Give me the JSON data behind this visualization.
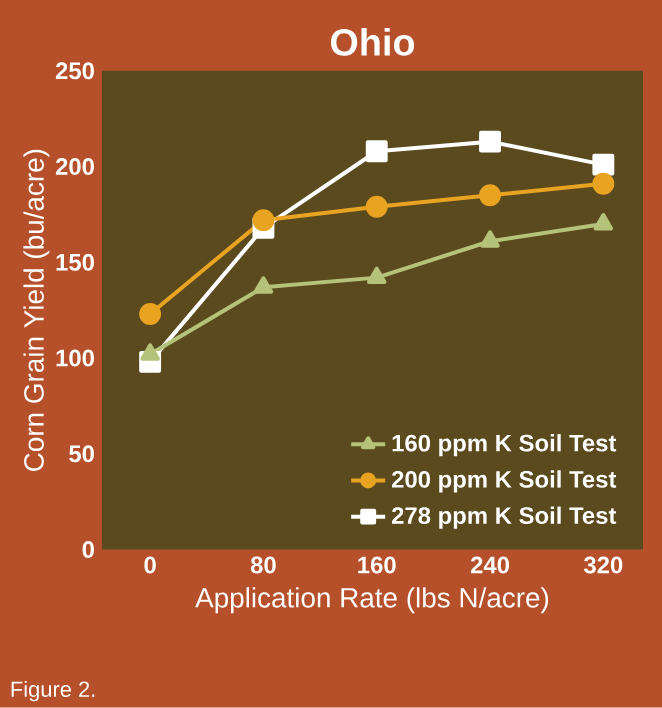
{
  "chart_data": {
    "type": "line",
    "title": "Ohio",
    "xlabel": "Application Rate (lbs N/acre)",
    "ylabel": "Corn Grain Yield (bu/acre)",
    "annotations": [
      "Figure 2."
    ],
    "x": [
      0,
      80,
      160,
      240,
      320
    ],
    "xlim": [
      -34,
      348
    ],
    "xticks": [
      0,
      80,
      160,
      240,
      320
    ],
    "ylim": [
      0,
      250
    ],
    "yticks": [
      0,
      50,
      100,
      150,
      200,
      250
    ],
    "series": [
      {
        "name": "160 ppm K Soil Test",
        "color": "#b4c27a",
        "marker": "triangle",
        "values": [
          102,
          137,
          142,
          161,
          170
        ]
      },
      {
        "name": "200 ppm K Soil Test",
        "color": "#e8a420",
        "marker": "circle",
        "values": [
          123,
          172,
          179,
          185,
          191
        ]
      },
      {
        "name": "278 ppm K Soil Test",
        "color": "#ffffff",
        "marker": "square",
        "values": [
          98,
          168,
          208,
          213,
          201
        ]
      }
    ],
    "grid": false,
    "legend": "bottom right",
    "line_style": "solid"
  }
}
